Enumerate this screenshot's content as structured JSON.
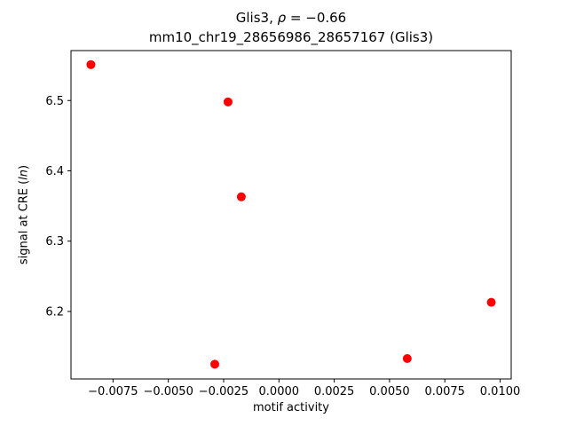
{
  "title": {
    "line1_prefix": "Glis3, ",
    "line1_math": "ρ",
    "line1_rest": " = −0.66",
    "line2": "mm10_chr19_28656986_28657167 (Glis3)"
  },
  "axis_labels": {
    "xlabel": "motif activity",
    "ylabel_prefix": "signal at CRE (",
    "ylabel_italic": "ln",
    "ylabel_suffix": ")"
  },
  "chart_data": {
    "type": "scatter",
    "title": "Glis3, ρ = −0.66",
    "subtitle": "mm10_chr19_28656986_28657167 (Glis3)",
    "xlabel": "motif activity",
    "ylabel": "signal at CRE (ln)",
    "grid": false,
    "legend": "none",
    "point_color": "#ff0000",
    "point_radius": 5,
    "xlim": [
      -0.0094,
      0.0105
    ],
    "ylim": [
      6.104,
      6.571
    ],
    "xticks": [
      -0.0075,
      -0.005,
      -0.0025,
      0.0,
      0.0025,
      0.005,
      0.0075,
      0.01
    ],
    "xtick_labels": [
      "−0.0075",
      "−0.0050",
      "−0.0025",
      "0.0000",
      "0.0025",
      "0.0050",
      "0.0075",
      "0.0100"
    ],
    "yticks": [
      6.2,
      6.3,
      6.4,
      6.5
    ],
    "ytick_labels": [
      "6.2",
      "6.3",
      "6.4",
      "6.5"
    ],
    "points": [
      {
        "x": -0.0085,
        "y": 6.551
      },
      {
        "x": -0.0023,
        "y": 6.498
      },
      {
        "x": -0.0017,
        "y": 6.363
      },
      {
        "x": 0.0096,
        "y": 6.213
      },
      {
        "x": -0.0029,
        "y": 6.125
      },
      {
        "x": 0.0058,
        "y": 6.133
      }
    ]
  }
}
